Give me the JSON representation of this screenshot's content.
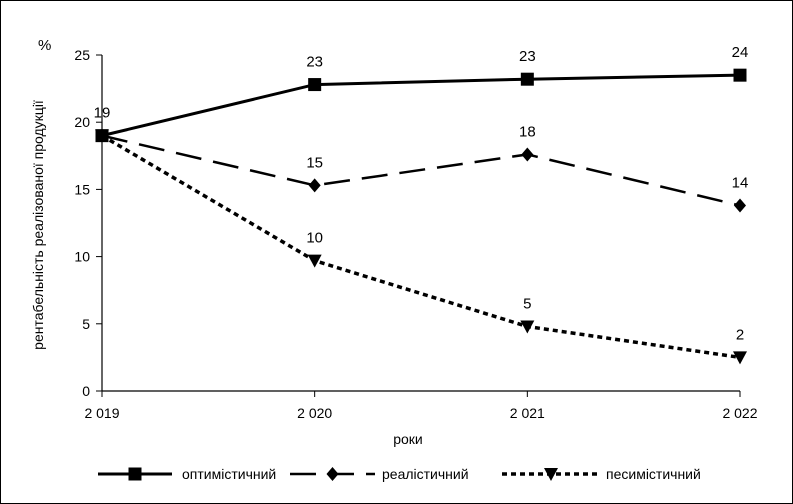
{
  "chart_data": {
    "type": "line",
    "categories": [
      "2 019",
      "2 020",
      "2 021",
      "2 022"
    ],
    "ylabel": "рентабельність реалізованої продукції",
    "xlabel": "роки",
    "yunit": "%",
    "ylim": [
      0,
      25
    ],
    "yticks": [
      "0",
      "5",
      "10",
      "15",
      "20",
      "25"
    ],
    "grid": false,
    "legend_position": "bottom",
    "series": [
      {
        "name": "оптимістичний",
        "values": [
          19,
          22.8,
          23.2,
          23.5
        ],
        "labels": [
          "19",
          "23",
          "23",
          "24"
        ],
        "marker": "square",
        "dash": "solid"
      },
      {
        "name": "реалістичний",
        "values": [
          19,
          15.3,
          17.6,
          13.8
        ],
        "labels": [
          "19",
          "15",
          "18",
          "14"
        ],
        "marker": "diamond",
        "dash": "long-dash"
      },
      {
        "name": "песимістичний",
        "values": [
          19,
          9.7,
          4.8,
          2.5
        ],
        "labels": [
          "19",
          "10",
          "5",
          "2"
        ],
        "marker": "triangle-down",
        "dash": "dotted"
      }
    ]
  }
}
